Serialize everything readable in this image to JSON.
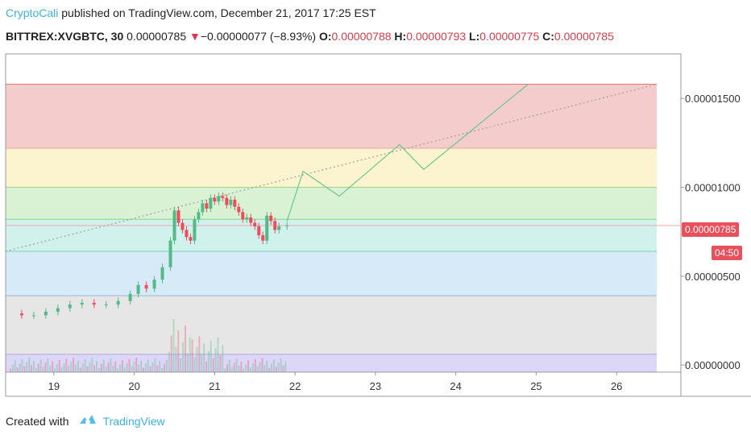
{
  "header": {
    "author": "CryptoCali",
    "published": " published on TradingView.com, December 21, 2017 17:25 EST",
    "symbol": "BITTREX:XVGBTC, 30",
    "last": "0.00000785",
    "arrow": "▼",
    "change": "−0.00000077 (−8.93%)",
    "o_label": "O:",
    "o_val": "0.00000788",
    "h_label": "H:",
    "h_val": "0.00000793",
    "l_label": "L:",
    "l_val": "0.00000775",
    "c_label": "C:",
    "c_val": "0.00000785"
  },
  "footer": {
    "created": "Created with",
    "brand": "TradingView"
  },
  "price_tag": "0.00000785",
  "time_tag": "04:50",
  "colors": {
    "up": "#53b987",
    "down": "#eb4d5c",
    "accent": "#3bb3e4",
    "fib_red": "#f4cccc",
    "fib_yellow": "#fcf4cf",
    "fib_green": "#d9f2d4",
    "fib_teal": "#d1f1ec",
    "fib_blue": "#d6eaf8",
    "fib_gray": "#e6e6e6",
    "fib_purple": "#dcd6f7"
  },
  "chart_data": {
    "type": "candlestick",
    "x_ticks": [
      "19",
      "20",
      "21",
      "22",
      "23",
      "24",
      "25",
      "26"
    ],
    "y_ticks": [
      "0.00001500",
      "0.00001000",
      "0.00000500",
      "0.00000000"
    ],
    "y_tick_values": [
      1.5e-05,
      1e-05,
      5e-06,
      0
    ],
    "xlim": [
      18.4,
      26.8
    ],
    "ylim": [
      -4e-07,
      1.75e-05
    ],
    "fib_levels": [
      3.9e-06,
      6.4e-06,
      8.2e-06,
      1e-05,
      1.22e-05,
      1.58e-05
    ],
    "price_line": 7.85e-06,
    "trendline": [
      [
        18.4,
        6.4e-06
      ],
      [
        26.5,
        1.58e-05
      ]
    ],
    "projection": [
      [
        21.9,
        8.1e-06
      ],
      [
        22.1,
        1.09e-05
      ],
      [
        22.55,
        9.5e-06
      ],
      [
        23.3,
        1.24e-05
      ],
      [
        23.6,
        1.1e-05
      ],
      [
        24.9,
        1.58e-05
      ]
    ],
    "closes": [
      [
        18.45,
        2.9e-06
      ],
      [
        18.6,
        2.8e-06
      ],
      [
        18.75,
        2.8e-06
      ],
      [
        18.9,
        3e-06
      ],
      [
        19.05,
        3.2e-06
      ],
      [
        19.2,
        3.4e-06
      ],
      [
        19.35,
        3.5e-06
      ],
      [
        19.5,
        3.4e-06
      ],
      [
        19.65,
        3.4e-06
      ],
      [
        19.8,
        3.6e-06
      ],
      [
        19.95,
        4e-06
      ],
      [
        20.05,
        4.5e-06
      ],
      [
        20.15,
        4.3e-06
      ],
      [
        20.25,
        4.8e-06
      ],
      [
        20.35,
        5.5e-06
      ],
      [
        20.45,
        7e-06
      ],
      [
        20.5,
        8.7e-06
      ],
      [
        20.55,
        8e-06
      ],
      [
        20.6,
        7.6e-06
      ],
      [
        20.65,
        7.2e-06
      ],
      [
        20.7,
        7e-06
      ],
      [
        20.75,
        8.2e-06
      ],
      [
        20.8,
        8.6e-06
      ],
      [
        20.85,
        9.1e-06
      ],
      [
        20.9,
        8.8e-06
      ],
      [
        20.95,
        9.4e-06
      ],
      [
        21.0,
        9.2e-06
      ],
      [
        21.05,
        9.5e-06
      ],
      [
        21.1,
        9.4e-06
      ],
      [
        21.15,
        9e-06
      ],
      [
        21.2,
        9.3e-06
      ],
      [
        21.25,
        8.9e-06
      ],
      [
        21.3,
        8.6e-06
      ],
      [
        21.35,
        8.2e-06
      ],
      [
        21.4,
        8.3e-06
      ],
      [
        21.45,
        8e-06
      ],
      [
        21.5,
        7.8e-06
      ],
      [
        21.55,
        7.3e-06
      ],
      [
        21.6,
        7e-06
      ],
      [
        21.65,
        8.4e-06
      ],
      [
        21.7,
        8.1e-06
      ],
      [
        21.75,
        7.6e-06
      ],
      [
        21.8,
        7.8e-06
      ],
      [
        21.9,
        7.85e-06
      ]
    ]
  }
}
